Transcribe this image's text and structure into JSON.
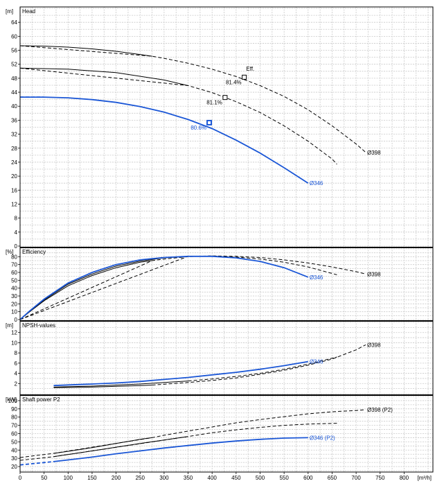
{
  "chart_data": {
    "type": "line",
    "x_unit": "[m³/h]",
    "xlim": [
      0,
      860
    ],
    "x_ticks": [
      0,
      50,
      100,
      150,
      200,
      250,
      300,
      350,
      400,
      450,
      500,
      550,
      600,
      650,
      700,
      750,
      800
    ],
    "colors": {
      "selected": "#1a56d6",
      "other": "#000000",
      "grid": "#c8c8c8",
      "frame": "#000000"
    },
    "panels": [
      {
        "id": "head",
        "title": "Head",
        "unit": "[m]",
        "ylim": [
          0,
          68
        ],
        "y_ticks": [
          0,
          4,
          8,
          12,
          16,
          20,
          24,
          28,
          32,
          36,
          40,
          44,
          48,
          52,
          56,
          60,
          64
        ],
        "series": [
          {
            "name": "Ø398",
            "label": "Ø398",
            "color": "#000000",
            "solid": [
              [
                0,
                57.3
              ],
              [
                50,
                57.2
              ],
              [
                100,
                56.9
              ],
              [
                150,
                56.4
              ],
              [
                200,
                55.7
              ],
              [
                250,
                54.8
              ],
              [
                275,
                54.3
              ]
            ],
            "dashed": [
              [
                0,
                57.3
              ],
              [
                275,
                54.3
              ],
              [
                300,
                53.7
              ],
              [
                350,
                52.3
              ],
              [
                400,
                50.6
              ],
              [
                450,
                48.5
              ],
              [
                500,
                45.9
              ],
              [
                550,
                42.8
              ],
              [
                600,
                39.0
              ],
              [
                650,
                34.4
              ],
              [
                700,
                29.2
              ],
              [
                720,
                26.8
              ]
            ],
            "solid_start": 30
          },
          {
            "name": "",
            "label": "",
            "color": "#000000",
            "solid": [
              [
                0,
                50.9
              ],
              [
                100,
                50.6
              ],
              [
                200,
                49.6
              ],
              [
                300,
                47.5
              ],
              [
                350,
                45.9
              ]
            ],
            "dashed": [
              [
                0,
                50.9
              ],
              [
                350,
                45.9
              ],
              [
                400,
                43.9
              ],
              [
                450,
                41.3
              ],
              [
                500,
                38.2
              ],
              [
                550,
                34.4
              ],
              [
                600,
                30.0
              ],
              [
                650,
                24.9
              ],
              [
                660,
                23.4
              ]
            ],
            "solid_start": 25
          },
          {
            "name": "Ø346",
            "label": "Ø346",
            "color": "#1a56d6",
            "solid": [
              [
                0,
                42.6
              ],
              [
                50,
                42.6
              ],
              [
                100,
                42.4
              ],
              [
                150,
                41.9
              ],
              [
                200,
                41.1
              ],
              [
                250,
                39.9
              ],
              [
                300,
                38.3
              ],
              [
                350,
                36.2
              ],
              [
                400,
                33.6
              ],
              [
                450,
                30.3
              ],
              [
                500,
                26.6
              ],
              [
                550,
                22.4
              ],
              [
                600,
                18.0
              ]
            ],
            "dashed": [
              [
                0,
                42.6
              ],
              [
                50,
                42.6
              ]
            ],
            "solid_start": 50
          }
        ],
        "markers": [
          {
            "x": 467,
            "y": 48.3,
            "label": "81.4%",
            "color": "#000000"
          },
          {
            "x": 427,
            "y": 42.5,
            "label": "81.1%",
            "color": "#000000"
          },
          {
            "x": 394,
            "y": 35.3,
            "label": "80.6%",
            "color": "#1a56d6"
          }
        ],
        "annotations": [
          {
            "text": "Eff.",
            "x": 471,
            "y": 50.2
          }
        ]
      },
      {
        "id": "efficiency",
        "title": "Efficiency",
        "unit": "[%]",
        "ylim": [
          0,
          90
        ],
        "y_ticks": [
          0,
          10,
          20,
          30,
          40,
          50,
          60,
          70,
          80
        ],
        "series": [
          {
            "name": "Ø398",
            "label": "Ø398",
            "color": "#000000",
            "solid": [
              [
                0,
                0
              ],
              [
                20,
                10
              ],
              [
                50,
                24
              ],
              [
                100,
                43
              ],
              [
                150,
                56
              ],
              [
                200,
                66
              ],
              [
                250,
                73
              ],
              [
                275,
                75
              ]
            ],
            "dashed": [
              [
                0,
                0
              ],
              [
                275,
                75
              ],
              [
                300,
                77
              ],
              [
                350,
                80
              ],
              [
                400,
                81
              ],
              [
                450,
                80.5
              ],
              [
                500,
                79
              ],
              [
                550,
                76
              ],
              [
                600,
                72
              ],
              [
                650,
                67
              ],
              [
                700,
                61
              ],
              [
                720,
                58
              ]
            ],
            "solid_start": 30
          },
          {
            "name": "",
            "label": "",
            "color": "#000000",
            "solid": [
              [
                0,
                0
              ],
              [
                20,
                10.5
              ],
              [
                50,
                25
              ],
              [
                100,
                45
              ],
              [
                150,
                58
              ],
              [
                200,
                68
              ],
              [
                250,
                74.5
              ],
              [
                300,
                78.5
              ],
              [
                350,
                80.5
              ]
            ],
            "dashed": [
              [
                0,
                0
              ],
              [
                350,
                80.5
              ],
              [
                400,
                81
              ],
              [
                450,
                79.5
              ],
              [
                500,
                77
              ],
              [
                550,
                73
              ],
              [
                600,
                67
              ],
              [
                660,
                57
              ]
            ],
            "solid_start": 25
          },
          {
            "name": "Ø346",
            "label": "Ø346",
            "color": "#1a56d6",
            "solid": [
              [
                0,
                0
              ],
              [
                20,
                11
              ],
              [
                50,
                26
              ],
              [
                100,
                46.5
              ],
              [
                150,
                60
              ],
              [
                200,
                70
              ],
              [
                250,
                76
              ],
              [
                300,
                79
              ],
              [
                350,
                80.5
              ],
              [
                400,
                80.5
              ],
              [
                450,
                78.5
              ],
              [
                500,
                74
              ],
              [
                550,
                66
              ],
              [
                600,
                54
              ]
            ],
            "dashed": [
              [
                0,
                0
              ],
              [
                0,
                0
              ]
            ],
            "solid_start": 0
          }
        ],
        "markers": [],
        "annotations": []
      },
      {
        "id": "npsh",
        "title": "NPSH-values",
        "unit": "[m]",
        "ylim": [
          0,
          14
        ],
        "y_ticks": [
          2,
          4,
          6,
          8,
          10,
          12
        ],
        "series": [
          {
            "name": "Ø398",
            "label": "Ø398",
            "color": "#000000",
            "solid": [
              [
                70,
                1.2
              ],
              [
                150,
                1.3
              ],
              [
                250,
                1.6
              ],
              [
                275,
                1.7
              ]
            ],
            "dashed": [
              [
                275,
                1.7
              ],
              [
                350,
                2.2
              ],
              [
                400,
                2.6
              ],
              [
                450,
                3.1
              ],
              [
                500,
                3.8
              ],
              [
                550,
                4.6
              ],
              [
                600,
                5.6
              ],
              [
                650,
                6.8
              ],
              [
                700,
                8.6
              ],
              [
                720,
                9.6
              ]
            ],
            "solid_start": 70
          },
          {
            "name": "",
            "label": "",
            "color": "#000000",
            "solid": [
              [
                70,
                1.3
              ],
              [
                150,
                1.5
              ],
              [
                250,
                1.9
              ],
              [
                350,
                2.5
              ]
            ],
            "dashed": [
              [
                350,
                2.5
              ],
              [
                400,
                2.9
              ],
              [
                450,
                3.4
              ],
              [
                500,
                4.0
              ],
              [
                550,
                4.8
              ],
              [
                600,
                5.8
              ],
              [
                660,
                7.2
              ]
            ],
            "solid_start": 70
          },
          {
            "name": "Ø346",
            "label": "Ø346",
            "color": "#1a56d6",
            "solid": [
              [
                70,
                1.6
              ],
              [
                150,
                1.9
              ],
              [
                200,
                2.1
              ],
              [
                250,
                2.4
              ],
              [
                300,
                2.8
              ],
              [
                350,
                3.2
              ],
              [
                400,
                3.7
              ],
              [
                450,
                4.2
              ],
              [
                500,
                4.8
              ],
              [
                550,
                5.5
              ],
              [
                600,
                6.3
              ]
            ],
            "dashed": [
              [
                70,
                1.6
              ],
              [
                70,
                1.6
              ]
            ],
            "solid_start": 70
          }
        ],
        "markers": [],
        "annotations": []
      },
      {
        "id": "power",
        "title": "Shaft power P2",
        "unit": "[kW]",
        "ylim": [
          15,
          105
        ],
        "y_ticks": [
          20,
          30,
          40,
          50,
          60,
          70,
          80,
          90,
          100
        ],
        "series": [
          {
            "name": "Ø398 (P2)",
            "label": "Ø398 (P2)",
            "color": "#000000",
            "solid": [
              [
                70,
                36
              ],
              [
                100,
                38.5
              ],
              [
                150,
                43
              ],
              [
                200,
                48
              ],
              [
                250,
                53
              ],
              [
                275,
                55
              ]
            ],
            "dashed": [
              [
                0,
                31
              ],
              [
                70,
                36
              ],
              [
                275,
                55
              ],
              [
                300,
                58
              ],
              [
                350,
                63
              ],
              [
                400,
                68
              ],
              [
                450,
                73
              ],
              [
                500,
                77
              ],
              [
                550,
                80.5
              ],
              [
                600,
                84
              ],
              [
                650,
                86.5
              ],
              [
                700,
                88
              ],
              [
                720,
                89
              ]
            ],
            "solid_start": 70
          },
          {
            "name": "",
            "label": "",
            "color": "#000000",
            "solid": [
              [
                70,
                32
              ],
              [
                150,
                39
              ],
              [
                250,
                48
              ],
              [
                350,
                56.5
              ]
            ],
            "dashed": [
              [
                0,
                27.5
              ],
              [
                70,
                32
              ],
              [
                350,
                56.5
              ],
              [
                400,
                61
              ],
              [
                450,
                64.5
              ],
              [
                500,
                67.5
              ],
              [
                550,
                70
              ],
              [
                600,
                71.5
              ],
              [
                660,
                72.5
              ]
            ],
            "solid_start": 70
          },
          {
            "name": "Ø346 (P2)",
            "label": "Ø346 (P2)",
            "color": "#1a56d6",
            "solid": [
              [
                70,
                26
              ],
              [
                100,
                28
              ],
              [
                150,
                31.5
              ],
              [
                200,
                35.5
              ],
              [
                250,
                39
              ],
              [
                300,
                42.5
              ],
              [
                350,
                45.5
              ],
              [
                400,
                48.5
              ],
              [
                450,
                51
              ],
              [
                500,
                53
              ],
              [
                550,
                54.5
              ],
              [
                600,
                55
              ]
            ],
            "dashed": [
              [
                0,
                22
              ],
              [
                70,
                26
              ]
            ],
            "solid_start": 70
          }
        ],
        "markers": [],
        "annotations": []
      }
    ]
  }
}
